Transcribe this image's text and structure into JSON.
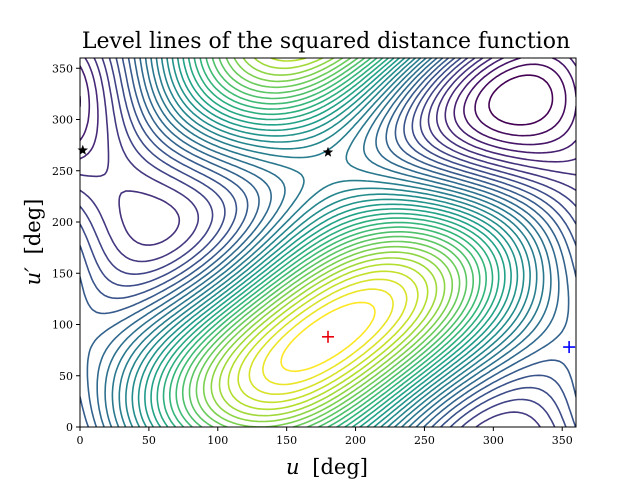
{
  "chart_data": {
    "type": "contour",
    "title": "Level lines of the squared distance function",
    "xlabel_var": "u",
    "ylabel_var": "u′",
    "unit": "[deg]",
    "xlim": [
      0,
      360
    ],
    "ylim": [
      0,
      360
    ],
    "xticks": [
      0,
      50,
      100,
      150,
      200,
      250,
      300,
      350
    ],
    "yticks": [
      0,
      50,
      100,
      150,
      200,
      250,
      300,
      350
    ],
    "colormap": "viridis",
    "level_count": 36,
    "markers": [
      {
        "kind": "plus",
        "x": 180,
        "y": 88,
        "color": "#e8000b"
      },
      {
        "kind": "plus",
        "x": 355,
        "y": 78,
        "color": "#0000ff"
      },
      {
        "kind": "star",
        "x": 180,
        "y": 268,
        "color": "#000000"
      },
      {
        "kind": "star",
        "x": 2,
        "y": 270,
        "color": "#000000"
      }
    ]
  }
}
